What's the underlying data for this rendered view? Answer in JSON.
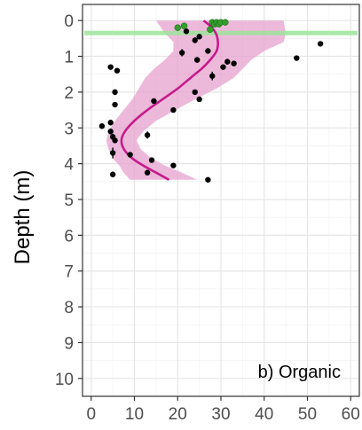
{
  "chart_data": {
    "type": "scatter",
    "title": "",
    "annotation": "b) Organic",
    "ylabel": "Depth (m)",
    "xlabel": "",
    "xlim": [
      -2,
      62
    ],
    "ylim": [
      10.5,
      -0.45
    ],
    "y_reversed": true,
    "x_ticks": [
      0,
      10,
      20,
      30,
      40,
      50,
      60
    ],
    "y_ticks": [
      0,
      1,
      2,
      3,
      4,
      5,
      6,
      7,
      8,
      9,
      10
    ],
    "grid": true,
    "legend": "none",
    "colors": {
      "points": "#000000",
      "highlight_points": "#33a02c",
      "trend_line": "#c51b8a",
      "ribbon": "#e7a1cf",
      "reference_line": "#9be49b",
      "grid_major": "#e6e6e6",
      "grid_minor": "#f3f3f3",
      "panel_border": "#333333"
    },
    "reference_line_depth": 0.35,
    "highlight_points": [
      {
        "x": 20.0,
        "y": 0.2
      },
      {
        "x": 21.5,
        "y": 0.15
      },
      {
        "x": 27.5,
        "y": 0.25
      },
      {
        "x": 28.0,
        "y": 0.05
      },
      {
        "x": 28.5,
        "y": 0.1
      },
      {
        "x": 29.0,
        "y": 0.05
      },
      {
        "x": 29.5,
        "y": 0.1
      },
      {
        "x": 30.0,
        "y": 0.05
      },
      {
        "x": 31.0,
        "y": 0.05
      }
    ],
    "points": [
      {
        "x": 22.0,
        "y": 0.3,
        "err": 0.05
      },
      {
        "x": 24.0,
        "y": 0.55,
        "err": 0.08
      },
      {
        "x": 25.0,
        "y": 0.45,
        "err": 0.06
      },
      {
        "x": 21.0,
        "y": 0.9,
        "err": 0.1
      },
      {
        "x": 27.0,
        "y": 0.85,
        "err": 0.06
      },
      {
        "x": 24.5,
        "y": 1.1,
        "err": 0.08
      },
      {
        "x": 31.5,
        "y": 1.15,
        "err": 0.08
      },
      {
        "x": 33.0,
        "y": 1.2,
        "err": 0.06
      },
      {
        "x": 30.5,
        "y": 1.3,
        "err": 0.06
      },
      {
        "x": 28.0,
        "y": 1.55,
        "err": 0.12
      },
      {
        "x": 47.5,
        "y": 1.05,
        "err": 0.06
      },
      {
        "x": 53.0,
        "y": 0.65,
        "err": 0.06
      },
      {
        "x": 4.5,
        "y": 1.3,
        "err": 0.06
      },
      {
        "x": 6.0,
        "y": 1.4,
        "err": 0.06
      },
      {
        "x": 5.5,
        "y": 2.0,
        "err": 0.08
      },
      {
        "x": 5.5,
        "y": 2.35,
        "err": 0.06
      },
      {
        "x": 14.5,
        "y": 2.25,
        "err": 0.06
      },
      {
        "x": 19.0,
        "y": 2.5,
        "err": 0.06
      },
      {
        "x": 24.0,
        "y": 2.0,
        "err": 0.06
      },
      {
        "x": 25.0,
        "y": 2.2,
        "err": 0.06
      },
      {
        "x": 2.5,
        "y": 2.95,
        "err": 0.06
      },
      {
        "x": 4.5,
        "y": 2.85,
        "err": 0.08
      },
      {
        "x": 4.5,
        "y": 3.1,
        "err": 0.08
      },
      {
        "x": 5.0,
        "y": 3.25,
        "err": 0.08
      },
      {
        "x": 5.5,
        "y": 3.35,
        "err": 0.06
      },
      {
        "x": 13.0,
        "y": 3.2,
        "err": 0.1
      },
      {
        "x": 5.0,
        "y": 3.7,
        "err": 0.15
      },
      {
        "x": 9.0,
        "y": 3.75,
        "err": 0.06
      },
      {
        "x": 14.0,
        "y": 3.9,
        "err": 0.06
      },
      {
        "x": 19.0,
        "y": 4.05,
        "err": 0.06
      },
      {
        "x": 5.0,
        "y": 4.3,
        "err": 0.08
      },
      {
        "x": 13.0,
        "y": 4.25,
        "err": 0.06
      },
      {
        "x": 27.0,
        "y": 4.45,
        "err": 0.06
      }
    ],
    "trend_line": [
      {
        "x": 26.0,
        "y": 0.0
      },
      {
        "x": 27.5,
        "y": 0.15
      },
      {
        "x": 28.8,
        "y": 0.35
      },
      {
        "x": 29.3,
        "y": 0.6
      },
      {
        "x": 29.0,
        "y": 0.85
      },
      {
        "x": 27.5,
        "y": 1.1
      },
      {
        "x": 25.5,
        "y": 1.35
      },
      {
        "x": 23.0,
        "y": 1.6
      },
      {
        "x": 20.0,
        "y": 1.9
      },
      {
        "x": 16.5,
        "y": 2.2
      },
      {
        "x": 13.0,
        "y": 2.5
      },
      {
        "x": 10.0,
        "y": 2.8
      },
      {
        "x": 7.8,
        "y": 3.1
      },
      {
        "x": 7.0,
        "y": 3.35
      },
      {
        "x": 7.6,
        "y": 3.6
      },
      {
        "x": 9.5,
        "y": 3.85
      },
      {
        "x": 12.0,
        "y": 4.05
      },
      {
        "x": 15.0,
        "y": 4.25
      },
      {
        "x": 18.0,
        "y": 4.45
      }
    ],
    "ribbon": [
      {
        "y": 0.0,
        "lo": 15.0,
        "hi": 44.5
      },
      {
        "y": 0.35,
        "lo": 17.0,
        "hi": 45.0
      },
      {
        "y": 0.6,
        "lo": 19.0,
        "hi": 44.5
      },
      {
        "y": 0.85,
        "lo": 19.0,
        "hi": 40.0
      },
      {
        "y": 1.1,
        "lo": 17.0,
        "hi": 37.0
      },
      {
        "y": 1.35,
        "lo": 14.5,
        "hi": 35.0
      },
      {
        "y": 1.6,
        "lo": 12.5,
        "hi": 33.0
      },
      {
        "y": 1.9,
        "lo": 11.0,
        "hi": 29.0
      },
      {
        "y": 2.2,
        "lo": 9.5,
        "hi": 24.0
      },
      {
        "y": 2.5,
        "lo": 7.5,
        "hi": 19.5
      },
      {
        "y": 2.8,
        "lo": 5.5,
        "hi": 15.0
      },
      {
        "y": 3.1,
        "lo": 4.0,
        "hi": 12.0
      },
      {
        "y": 3.35,
        "lo": 3.5,
        "hi": 10.5
      },
      {
        "y": 3.6,
        "lo": 4.0,
        "hi": 11.5
      },
      {
        "y": 3.85,
        "lo": 5.0,
        "hi": 14.0
      },
      {
        "y": 4.05,
        "lo": 6.5,
        "hi": 17.0
      },
      {
        "y": 4.25,
        "lo": 7.5,
        "hi": 21.0
      },
      {
        "y": 4.45,
        "lo": 9.0,
        "hi": 24.5
      }
    ]
  }
}
